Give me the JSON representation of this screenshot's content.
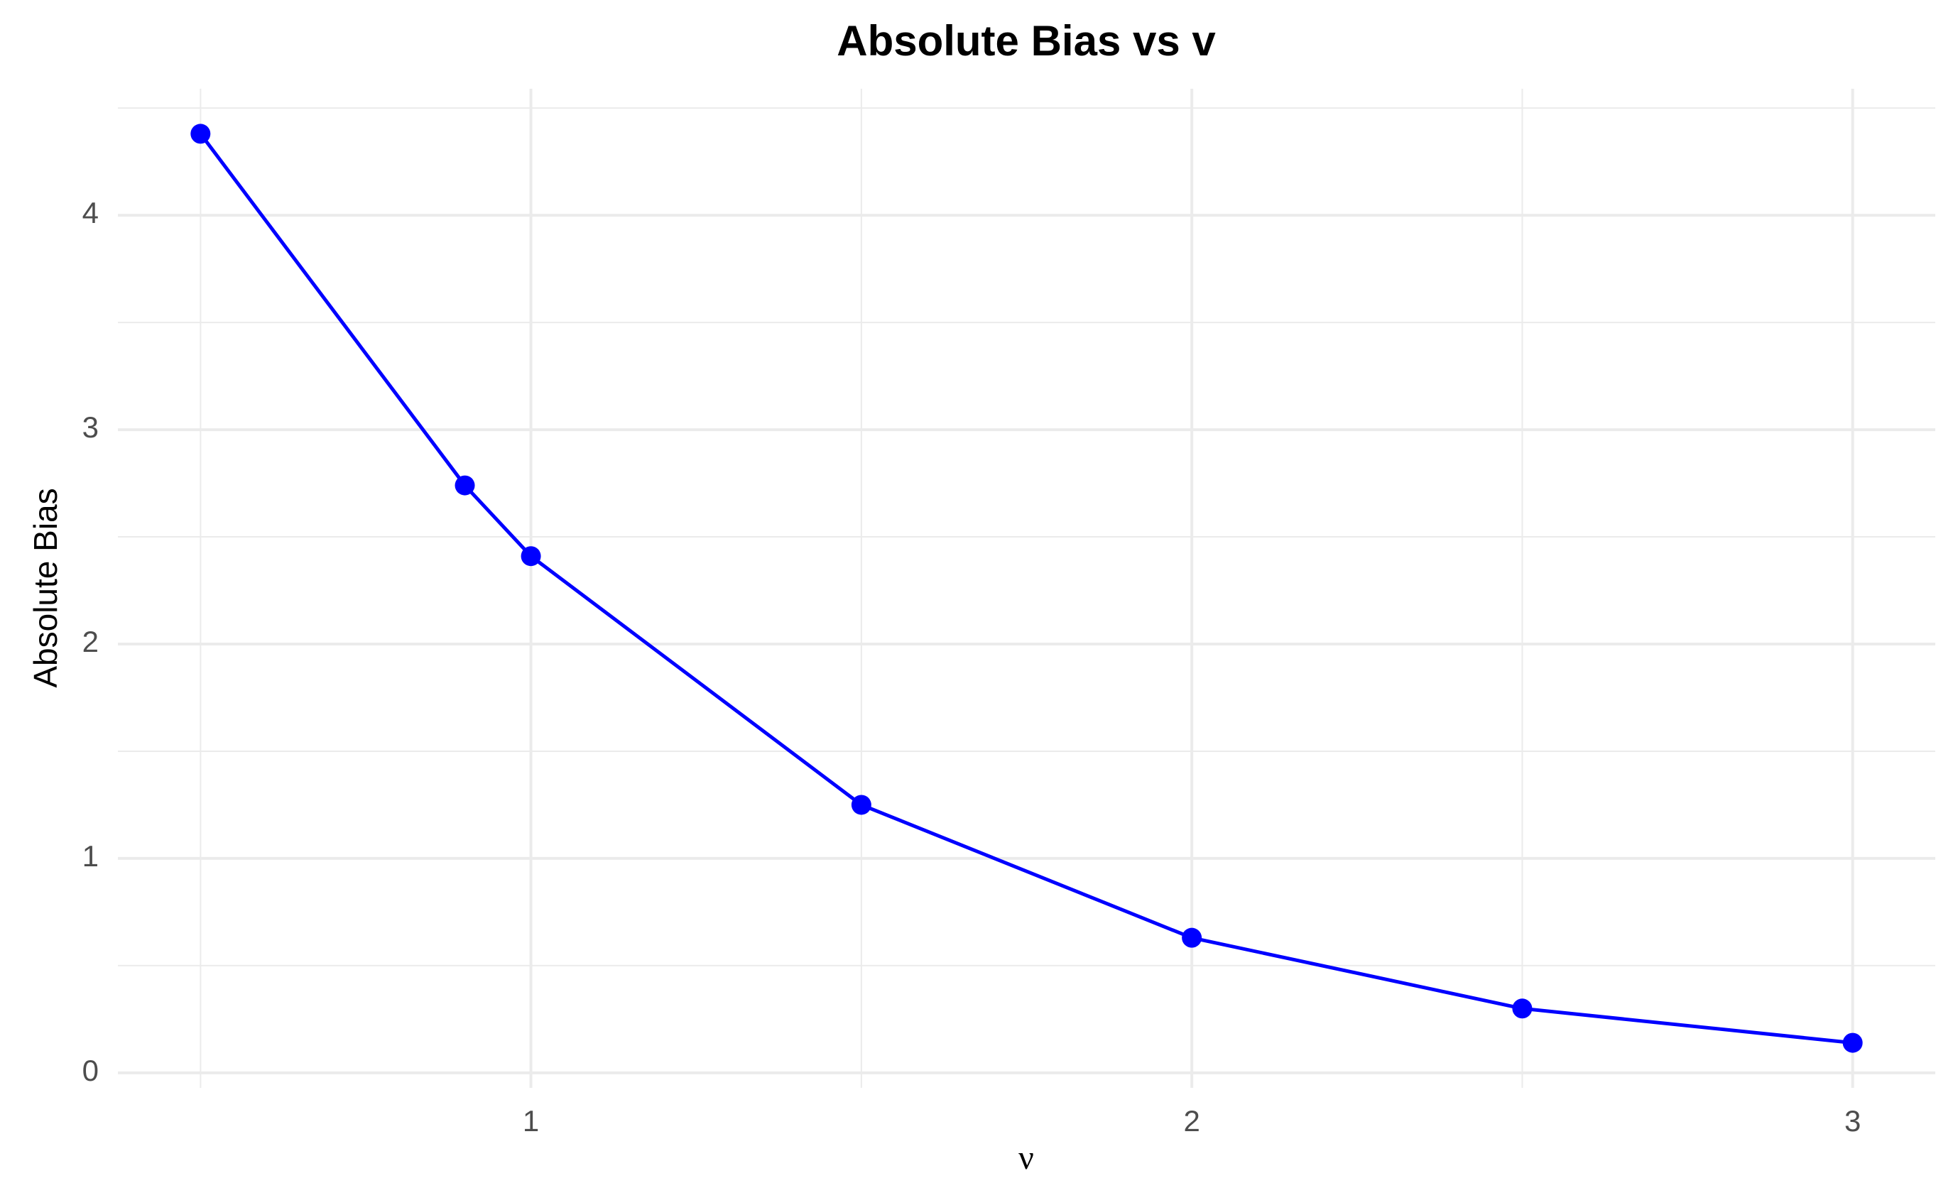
{
  "chart_data": {
    "type": "line",
    "title": "Absolute Bias vs v",
    "x_label": "ν",
    "y_label": "Absolute Bias",
    "x": [
      0.5,
      0.9,
      1,
      1.5,
      2,
      2.5,
      3
    ],
    "series": [
      {
        "name": "Absolute Bias",
        "color": "#0000ff",
        "values": [
          4.38,
          2.74,
          2.41,
          1.25,
          0.63,
          0.3,
          0.14
        ]
      }
    ],
    "xlim": [
      0.375,
      3.125
    ],
    "xticks": [
      1,
      2,
      3
    ],
    "ylim": [
      -0.07,
      4.59
    ],
    "yticks": [
      0,
      1,
      2,
      3,
      4
    ],
    "grid": true,
    "minor_grid": true,
    "markers": true
  }
}
